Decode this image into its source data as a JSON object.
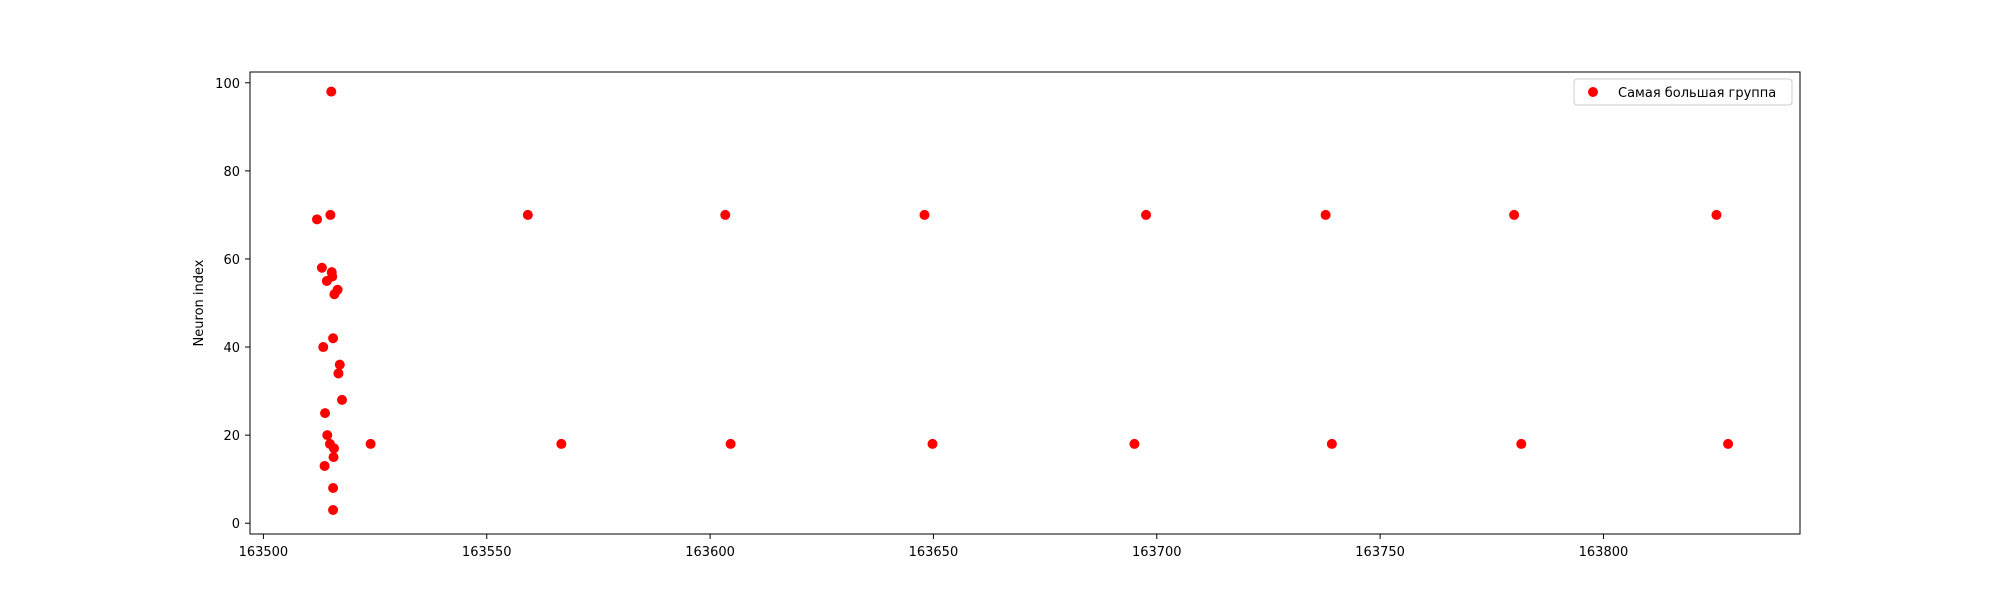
{
  "chart_data": {
    "type": "scatter",
    "title": "",
    "xlabel": "",
    "ylabel": "Neuron index",
    "xlim": [
      163497,
      163844
    ],
    "ylim": [
      -2.45,
      102.45
    ],
    "x_ticks": [
      163500,
      163550,
      163600,
      163650,
      163700,
      163750,
      163800
    ],
    "y_ticks": [
      0,
      20,
      40,
      60,
      80,
      100
    ],
    "grid": false,
    "legend_position": "top-right",
    "series": [
      {
        "name": "Самая большая группа",
        "color": "#ff0000",
        "marker": "circle",
        "points": [
          [
            163515.2,
            98
          ],
          [
            163515.0,
            70
          ],
          [
            163512.0,
            69
          ],
          [
            163513.1,
            58
          ],
          [
            163515.3,
            57
          ],
          [
            163515.4,
            56
          ],
          [
            163514.2,
            55
          ],
          [
            163516.6,
            53
          ],
          [
            163515.9,
            52
          ],
          [
            163515.6,
            42
          ],
          [
            163513.4,
            40
          ],
          [
            163517.1,
            36
          ],
          [
            163516.8,
            34
          ],
          [
            163517.6,
            28
          ],
          [
            163513.8,
            25
          ],
          [
            163514.3,
            20
          ],
          [
            163514.9,
            18
          ],
          [
            163515.8,
            17
          ],
          [
            163515.7,
            15
          ],
          [
            163513.7,
            13
          ],
          [
            163515.6,
            8
          ],
          [
            163515.6,
            3
          ],
          [
            163524.0,
            18
          ],
          [
            163559.2,
            70
          ],
          [
            163566.7,
            18
          ],
          [
            163603.4,
            70
          ],
          [
            163604.6,
            18
          ],
          [
            163648.0,
            70
          ],
          [
            163649.8,
            18
          ],
          [
            163697.6,
            70
          ],
          [
            163695.0,
            18
          ],
          [
            163737.8,
            70
          ],
          [
            163739.2,
            18
          ],
          [
            163780.0,
            70
          ],
          [
            163781.6,
            18
          ],
          [
            163825.3,
            70
          ],
          [
            163827.9,
            18
          ]
        ]
      }
    ]
  }
}
